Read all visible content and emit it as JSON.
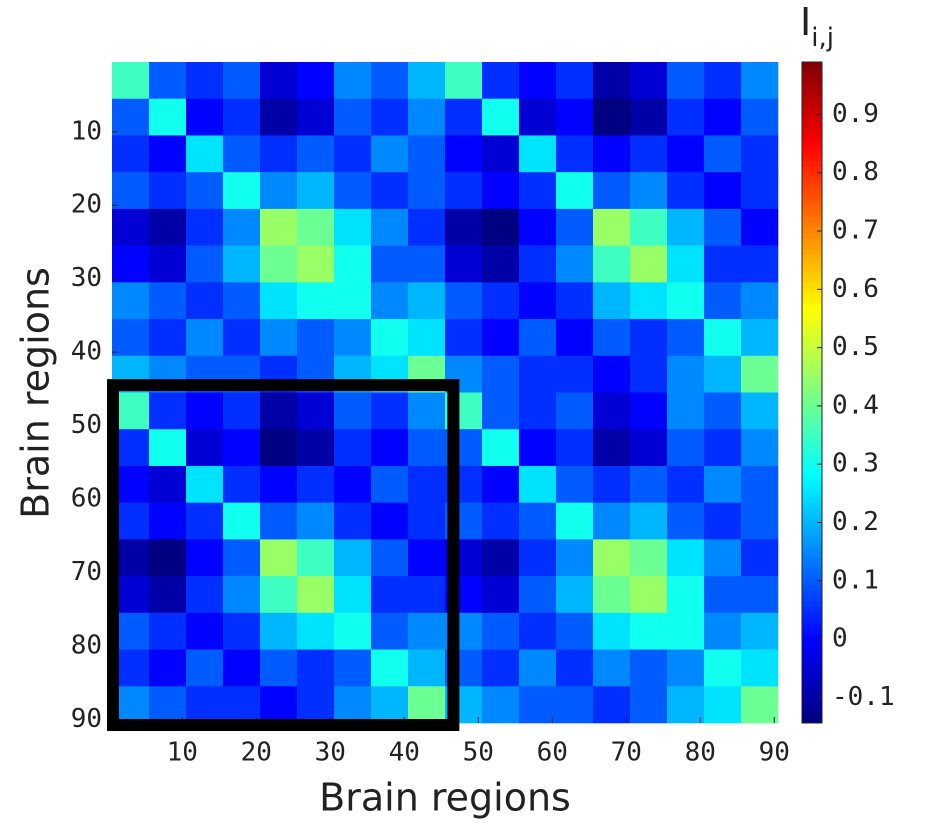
{
  "chart_data": {
    "type": "heatmap",
    "xlabel": "Brain regions",
    "ylabel": "Brain regions",
    "colorbar_label": "I",
    "colorbar_label_sub": "i,j",
    "x": [
      3,
      8,
      13,
      18,
      23,
      28,
      33,
      38,
      43,
      48,
      53,
      58,
      63,
      68,
      73,
      78,
      83,
      88
    ],
    "y": [
      3,
      8,
      13,
      18,
      23,
      28,
      33,
      38,
      43,
      48,
      53,
      58,
      63,
      68,
      73,
      78,
      83,
      88
    ],
    "values": [
      [
        0.35,
        0.1,
        0.05,
        0.1,
        -0.05,
        0,
        0.15,
        0.1,
        0.2,
        0.35,
        0.05,
        0,
        0.05,
        -0.1,
        -0.05,
        0.1,
        0.05,
        0.15
      ],
      [
        0.1,
        0.3,
        0,
        0.05,
        -0.1,
        -0.05,
        0.1,
        0.05,
        0.15,
        0.05,
        0.3,
        -0.05,
        0,
        -0.15,
        -0.1,
        0.05,
        0,
        0.1
      ],
      [
        0.05,
        0,
        0.25,
        0.1,
        0.05,
        0.1,
        0.05,
        0.15,
        0.1,
        0,
        -0.05,
        0.25,
        0.05,
        0,
        0.05,
        0,
        0.1,
        0.05
      ],
      [
        0.1,
        0.05,
        0.1,
        0.3,
        0.15,
        0.2,
        0.1,
        0.05,
        0.1,
        0.05,
        0,
        0.05,
        0.3,
        0.1,
        0.15,
        0.05,
        0,
        0.05
      ],
      [
        -0.05,
        -0.1,
        0.05,
        0.15,
        0.45,
        0.4,
        0.25,
        0.15,
        0.05,
        -0.1,
        -0.15,
        0,
        0.1,
        0.45,
        0.35,
        0.2,
        0.1,
        0
      ],
      [
        0,
        -0.05,
        0.1,
        0.2,
        0.4,
        0.45,
        0.3,
        0.1,
        0.1,
        -0.05,
        -0.1,
        0.05,
        0.15,
        0.35,
        0.45,
        0.25,
        0.05,
        0.05
      ],
      [
        0.15,
        0.1,
        0.05,
        0.1,
        0.25,
        0.3,
        0.3,
        0.15,
        0.2,
        0.1,
        0.05,
        0,
        0.05,
        0.2,
        0.25,
        0.3,
        0.1,
        0.15
      ],
      [
        0.1,
        0.05,
        0.15,
        0.05,
        0.15,
        0.1,
        0.15,
        0.3,
        0.25,
        0.05,
        0,
        0.1,
        0,
        0.1,
        0.05,
        0.1,
        0.3,
        0.2
      ],
      [
        0.2,
        0.15,
        0.1,
        0.1,
        0.05,
        0.1,
        0.2,
        0.25,
        0.4,
        0.15,
        0.1,
        0.05,
        0.05,
        0,
        0.05,
        0.15,
        0.2,
        0.4
      ],
      [
        0.35,
        0.05,
        0,
        0.05,
        -0.1,
        -0.05,
        0.1,
        0.05,
        0.15,
        0.35,
        0.1,
        0.05,
        0.1,
        -0.05,
        0,
        0.15,
        0.1,
        0.2
      ],
      [
        0.05,
        0.3,
        -0.05,
        0,
        -0.15,
        -0.1,
        0.05,
        0,
        0.1,
        0.1,
        0.3,
        0,
        0.05,
        -0.1,
        -0.05,
        0.1,
        0.05,
        0.15
      ],
      [
        0,
        -0.05,
        0.25,
        0.05,
        0,
        0.05,
        0,
        0.1,
        0.05,
        0.05,
        0,
        0.25,
        0.1,
        0.05,
        0.1,
        0.05,
        0.15,
        0.1
      ],
      [
        0.05,
        0,
        0.05,
        0.3,
        0.1,
        0.15,
        0.05,
        0,
        0.05,
        0.1,
        0.05,
        0.1,
        0.3,
        0.15,
        0.2,
        0.1,
        0.05,
        0.1
      ],
      [
        -0.1,
        -0.15,
        0,
        0.1,
        0.45,
        0.35,
        0.2,
        0.1,
        0,
        -0.05,
        -0.1,
        0.05,
        0.15,
        0.45,
        0.4,
        0.25,
        0.15,
        0.05
      ],
      [
        -0.05,
        -0.1,
        0.05,
        0.15,
        0.35,
        0.45,
        0.25,
        0.05,
        0.05,
        0,
        -0.05,
        0.1,
        0.2,
        0.4,
        0.45,
        0.3,
        0.1,
        0.1
      ],
      [
        0.1,
        0.05,
        0,
        0.05,
        0.2,
        0.25,
        0.3,
        0.1,
        0.15,
        0.15,
        0.1,
        0.05,
        0.1,
        0.25,
        0.3,
        0.3,
        0.15,
        0.2
      ],
      [
        0.05,
        0,
        0.1,
        0,
        0.1,
        0.05,
        0.1,
        0.3,
        0.2,
        0.1,
        0.05,
        0.15,
        0.05,
        0.15,
        0.1,
        0.15,
        0.3,
        0.25
      ],
      [
        0.15,
        0.1,
        0.05,
        0.05,
        0,
        0.05,
        0.15,
        0.2,
        0.4,
        0.2,
        0.15,
        0.1,
        0.1,
        0.05,
        0.1,
        0.2,
        0.25,
        0.4
      ]
    ],
    "xlim": [
      0.5,
      90.5
    ],
    "ylim": [
      0.5,
      90.5
    ],
    "xticks": [
      10,
      20,
      30,
      40,
      50,
      60,
      70,
      80,
      90
    ],
    "yticks": [
      10,
      20,
      30,
      40,
      50,
      60,
      70,
      80,
      90
    ],
    "colormap": "jet",
    "clim": [
      -0.144,
      0.99
    ],
    "cticks": [
      -0.1,
      0,
      0.1,
      0.2,
      0.3,
      0.4,
      0.5,
      0.6,
      0.7,
      0.8,
      0.9
    ],
    "highlight_box": {
      "xlim": [
        0.5,
        46.5
      ],
      "ylim": [
        44.5,
        90.5
      ],
      "color": "#000000"
    }
  }
}
